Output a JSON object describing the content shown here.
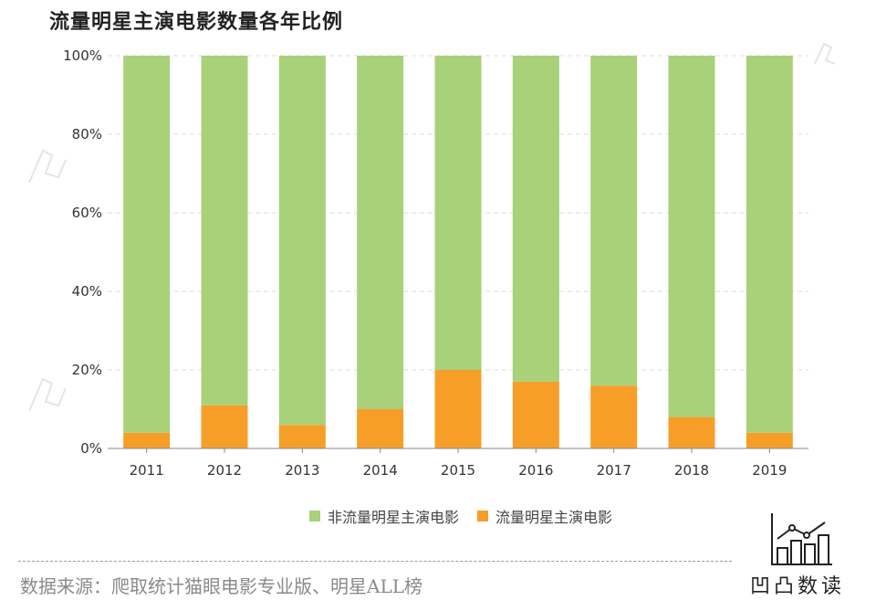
{
  "title": "流量明星主演电影数量各年比例",
  "chart_data": {
    "type": "bar",
    "stacked": true,
    "categories": [
      "2011",
      "2012",
      "2013",
      "2014",
      "2015",
      "2016",
      "2017",
      "2018",
      "2019"
    ],
    "series": [
      {
        "name": "非流量明星主演电影",
        "color": "#a8d17a",
        "values": [
          96,
          89,
          94,
          90,
          80,
          83,
          84,
          92,
          96
        ]
      },
      {
        "name": "流量明星主演电影",
        "color": "#f79e28",
        "values": [
          4,
          11,
          6,
          10,
          20,
          17,
          16,
          8,
          4
        ]
      }
    ],
    "yticks": [
      "0%",
      "20%",
      "40%",
      "60%",
      "80%",
      "100%"
    ],
    "ylim": [
      0,
      100
    ],
    "grid": true,
    "legend": "bottom"
  },
  "source": "数据来源：爬取统计猫眼电影专业版、明星ALL榜",
  "logo_text": "凹凸数读"
}
